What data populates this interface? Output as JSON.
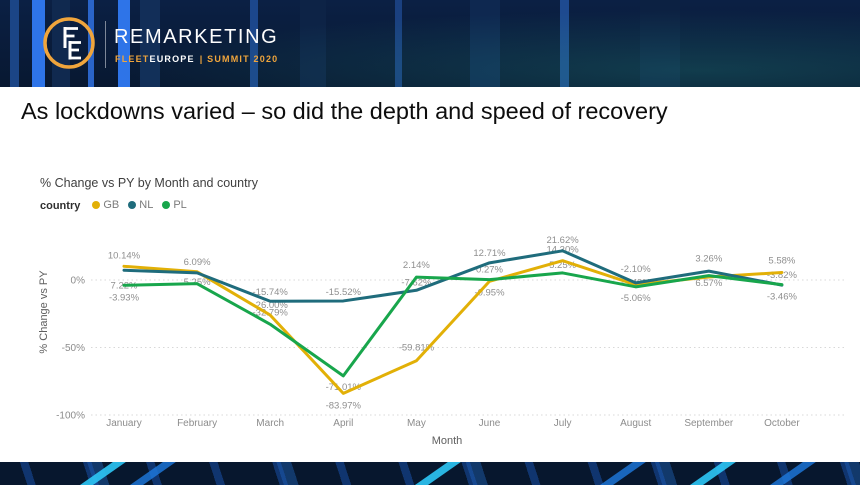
{
  "header": {
    "brand": "REMARKETING",
    "subtitle": {
      "fleet": "FLEET",
      "europe": "EUROPE",
      "rest": "| SUMMIT 2020"
    },
    "colors": {
      "gold": "#F0A53C",
      "navy": "#0B2044",
      "bright_blue": "#2E74E8"
    }
  },
  "slide": {
    "title": "As lockdowns varied – so did the depth and speed of recovery"
  },
  "chart_data": {
    "type": "line",
    "title": "% Change vs PY by Month and country",
    "legend_title": "country",
    "legend_position": "top-left",
    "xlabel": "Month",
    "ylabel": "% Change vs PY",
    "grid": [
      {
        "value": 0,
        "label": "0%"
      },
      {
        "value": -50,
        "label": "-50%"
      },
      {
        "value": -100,
        "label": "-100%"
      }
    ],
    "ylim": [
      -110,
      30
    ],
    "categories": [
      "January",
      "February",
      "March",
      "April",
      "May",
      "June",
      "July",
      "August",
      "September",
      "October"
    ],
    "series": [
      {
        "name": "GB",
        "color": "#E2B007",
        "values": [
          10.14,
          6.09,
          -26.0,
          -83.97,
          -59.81,
          -0.95,
          14.3,
          -3.49,
          2.2,
          5.58
        ]
      },
      {
        "name": "NL",
        "color": "#1F6C7C",
        "values": [
          7.22,
          5.25,
          -15.74,
          -15.52,
          -7.62,
          12.71,
          21.62,
          -2.1,
          6.57,
          -3.82
        ]
      },
      {
        "name": "PL",
        "color": "#18A64C",
        "values": [
          -3.93,
          -2.7,
          -32.79,
          -71.01,
          2.14,
          0.27,
          5.25,
          -5.06,
          3.26,
          -3.46
        ]
      }
    ],
    "point_labels": [
      {
        "series": 0,
        "month": 0,
        "text": "10.14%",
        "dy": -11
      },
      {
        "series": 0,
        "month": 1,
        "text": "6.09%",
        "dy": -10
      },
      {
        "series": 0,
        "month": 2,
        "text": "-26.00%",
        "dy": -10
      },
      {
        "series": 0,
        "month": 3,
        "text": "-83.97%",
        "dy": 12
      },
      {
        "series": 0,
        "month": 4,
        "text": "-59.81%",
        "dy": -13
      },
      {
        "series": 0,
        "month": 5,
        "text": "-0.95%",
        "dy": 11
      },
      {
        "series": 0,
        "month": 6,
        "text": "14.30%",
        "dy": -11
      },
      {
        "series": 0,
        "month": 7,
        "text": "-3.49%",
        "dy": -2
      },
      {
        "series": 0,
        "month": 9,
        "text": "5.58%",
        "dy": -12
      },
      {
        "series": 1,
        "month": 0,
        "text": "7.22%",
        "dy": 15
      },
      {
        "series": 1,
        "month": 1,
        "text": "5.25%",
        "dy": 9
      },
      {
        "series": 1,
        "month": 2,
        "text": "-15.74%",
        "dy": -9
      },
      {
        "series": 1,
        "month": 3,
        "text": "-15.52%",
        "dy": -9
      },
      {
        "series": 1,
        "month": 4,
        "text": "-7.62%",
        "dy": -8
      },
      {
        "series": 1,
        "month": 5,
        "text": "12.71%",
        "dy": -10
      },
      {
        "series": 1,
        "month": 6,
        "text": "21.62%",
        "dy": -11
      },
      {
        "series": 1,
        "month": 7,
        "text": "-2.10%",
        "dy": -14
      },
      {
        "series": 1,
        "month": 8,
        "text": "6.57%",
        "dy": 12
      },
      {
        "series": 1,
        "month": 9,
        "text": "-3.82%",
        "dy": -10
      },
      {
        "series": 2,
        "month": 0,
        "text": "-3.93%",
        "dy": 12
      },
      {
        "series": 2,
        "month": 2,
        "text": "-32.79%",
        "dy": -12
      },
      {
        "series": 2,
        "month": 3,
        "text": "-71.01%",
        "dy": 11
      },
      {
        "series": 2,
        "month": 4,
        "text": "2.14%",
        "dy": -12
      },
      {
        "series": 2,
        "month": 5,
        "text": "0.27%",
        "dy": -10
      },
      {
        "series": 2,
        "month": 6,
        "text": "5.25%",
        "dy": -8
      },
      {
        "series": 2,
        "month": 7,
        "text": "-5.06%",
        "dy": 11
      },
      {
        "series": 2,
        "month": 8,
        "text": "3.26%",
        "dy": -17
      },
      {
        "series": 2,
        "month": 9,
        "text": "-3.46%",
        "dy": 12
      }
    ]
  }
}
